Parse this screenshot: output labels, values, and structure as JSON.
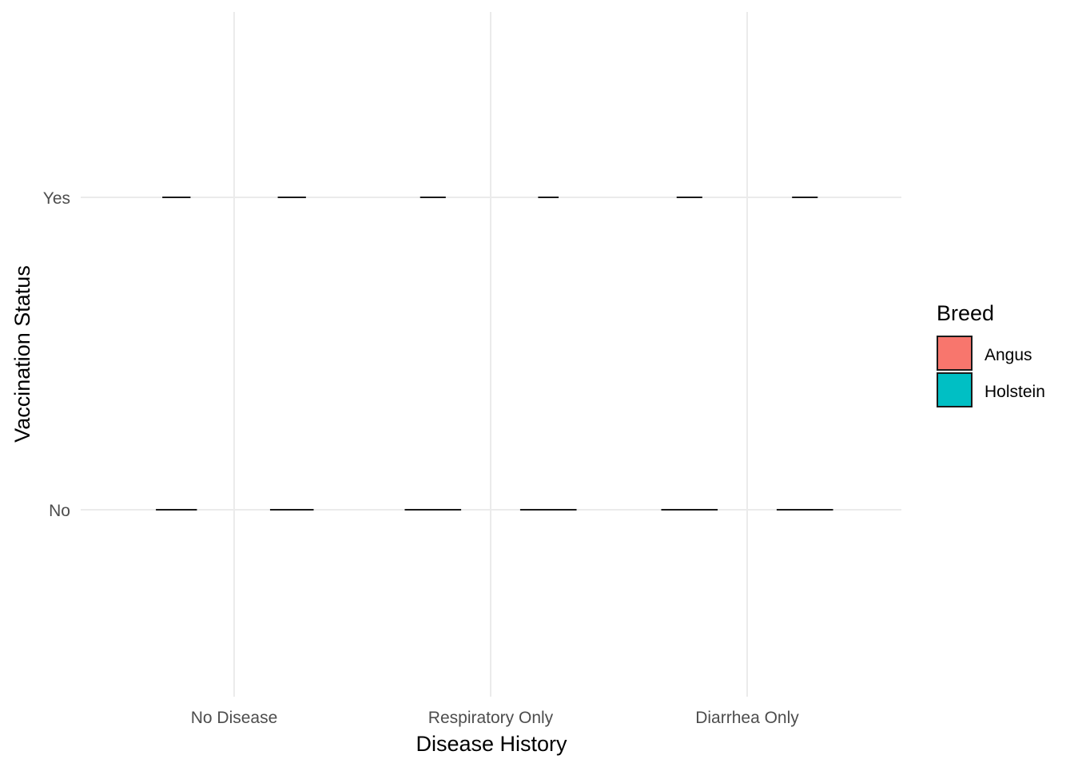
{
  "chart_data": {
    "type": "violin",
    "xlabel": "Disease History",
    "ylabel": "Vaccination Status",
    "categories": [
      "No Disease",
      "Respiratory Only",
      "Diarrhea Only"
    ],
    "y_levels": [
      "No",
      "Yes"
    ],
    "legend": {
      "title": "Breed",
      "position": "right",
      "entries": [
        {
          "name": "Angus",
          "color": "#F8766D"
        },
        {
          "name": "Holstein",
          "color": "#00BFC4"
        }
      ]
    },
    "series": [
      {
        "name": "Angus",
        "color": "#F8766D",
        "marks": [
          {
            "category": "No Disease",
            "y": "No",
            "width": 0.16
          },
          {
            "category": "No Disease",
            "y": "Yes",
            "width": 0.11
          },
          {
            "category": "Respiratory Only",
            "y": "No",
            "width": 0.22
          },
          {
            "category": "Respiratory Only",
            "y": "Yes",
            "width": 0.1
          },
          {
            "category": "Diarrhea Only",
            "y": "No",
            "width": 0.22
          },
          {
            "category": "Diarrhea Only",
            "y": "Yes",
            "width": 0.1
          }
        ]
      },
      {
        "name": "Holstein",
        "color": "#00BFC4",
        "marks": [
          {
            "category": "No Disease",
            "y": "No",
            "width": 0.17
          },
          {
            "category": "No Disease",
            "y": "Yes",
            "width": 0.11
          },
          {
            "category": "Respiratory Only",
            "y": "No",
            "width": 0.22
          },
          {
            "category": "Respiratory Only",
            "y": "Yes",
            "width": 0.08
          },
          {
            "category": "Diarrhea Only",
            "y": "No",
            "width": 0.22
          },
          {
            "category": "Diarrhea Only",
            "y": "Yes",
            "width": 0.1
          }
        ]
      }
    ],
    "grid": true,
    "gridline_color": "#EBEBEB"
  }
}
